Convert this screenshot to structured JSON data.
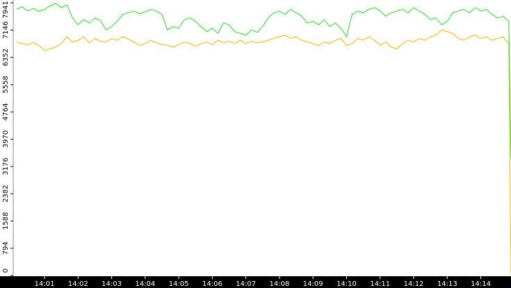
{
  "chart_data": {
    "type": "line",
    "x": [
      10,
      20,
      30,
      40,
      50,
      60,
      70,
      80,
      90,
      100,
      110,
      120,
      130,
      140,
      150,
      160,
      170,
      180,
      190,
      200,
      210,
      220,
      230,
      240,
      250,
      260,
      270,
      280,
      290,
      300,
      310,
      320,
      330,
      340,
      350,
      360,
      370,
      380,
      390,
      400,
      410,
      420,
      430,
      440,
      450,
      460,
      470,
      480,
      490,
      500,
      510,
      520,
      530,
      540,
      550,
      560,
      570,
      580,
      590,
      600,
      610,
      620,
      630,
      640,
      650,
      660,
      670,
      680,
      690,
      700,
      710,
      720,
      730,
      740,
      750,
      760,
      770,
      780,
      790,
      800,
      810,
      820,
      830,
      840,
      850,
      860,
      870,
      880,
      890,
      894
    ],
    "series": [
      {
        "color": "#22dd22",
        "values": [
          7750,
          7820,
          7700,
          7780,
          7690,
          7750,
          7850,
          7920,
          7800,
          7880,
          7500,
          7300,
          7450,
          7350,
          7500,
          7420,
          7150,
          7250,
          7400,
          7600,
          7650,
          7700,
          7620,
          7680,
          7750,
          7700,
          7600,
          7150,
          7250,
          7200,
          7450,
          7500,
          7400,
          7250,
          7100,
          7200,
          7050,
          7350,
          7300,
          7100,
          7050,
          7000,
          7150,
          7080,
          7250,
          7500,
          7650,
          7700,
          7600,
          7750,
          7650,
          7550,
          7350,
          7400,
          7300,
          7450,
          7250,
          7350,
          7200,
          6950,
          7600,
          7700,
          7650,
          7750,
          7800,
          7700,
          7550,
          7650,
          7700,
          7750,
          7650,
          7800,
          7700,
          7600,
          7450,
          7500,
          7300,
          7400,
          7650,
          7700,
          7750,
          7650,
          7800,
          7700,
          7750,
          7600,
          7500,
          7550,
          7400,
          3400
        ]
      },
      {
        "color": "#f0b400",
        "values": [
          6800,
          6750,
          6720,
          6780,
          6700,
          6550,
          6600,
          6650,
          6750,
          6950,
          6800,
          6850,
          6950,
          6780,
          6900,
          6820,
          6800,
          6900,
          6850,
          6950,
          6880,
          6800,
          6700,
          6750,
          6850,
          6780,
          6720,
          6700,
          6650,
          6720,
          6800,
          6750,
          6680,
          6750,
          6800,
          6720,
          6850,
          6780,
          6820,
          6750,
          6850,
          6750,
          6820,
          6780,
          6800,
          6850,
          6900,
          6950,
          7000,
          6900,
          6950,
          6850,
          6800,
          6750,
          6700,
          6800,
          6750,
          6850,
          6900,
          6700,
          6750,
          6900,
          6850,
          6950,
          6850,
          6700,
          6800,
          6650,
          6600,
          6750,
          6850,
          6800,
          6900,
          6850,
          6950,
          7000,
          7150,
          7100,
          7050,
          6900,
          6850,
          6950,
          7000,
          6900,
          6950,
          6850,
          6900,
          6950,
          6750,
          0
        ]
      }
    ],
    "xlim": [
      4,
      894
    ],
    "xticks": [
      {
        "value": 60,
        "label": "14:01"
      },
      {
        "value": 120,
        "label": "14:02"
      },
      {
        "value": 180,
        "label": "14:03"
      },
      {
        "value": 240,
        "label": "14:04"
      },
      {
        "value": 300,
        "label": "14:05"
      },
      {
        "value": 360,
        "label": "14:06"
      },
      {
        "value": 420,
        "label": "14:07"
      },
      {
        "value": 480,
        "label": "14:08"
      },
      {
        "value": 540,
        "label": "14:09"
      },
      {
        "value": 600,
        "label": "14:10"
      },
      {
        "value": 660,
        "label": "14:11"
      },
      {
        "value": 720,
        "label": "14:12"
      },
      {
        "value": 780,
        "label": "14:13"
      },
      {
        "value": 840,
        "label": "14:14"
      }
    ],
    "ylim": [
      0,
      7941
    ],
    "yticks": [
      0,
      794,
      1588,
      2382,
      3176,
      3970,
      4764,
      5558,
      6352,
      7146,
      7941
    ]
  }
}
